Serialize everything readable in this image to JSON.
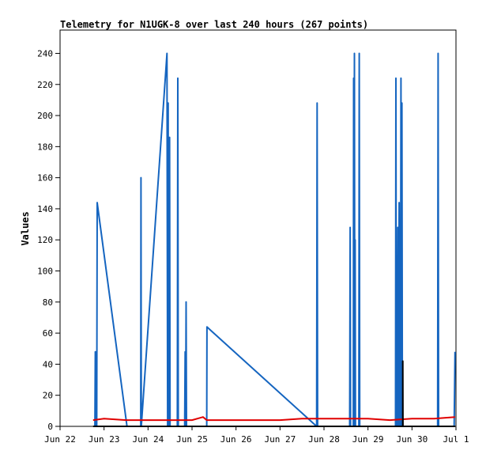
{
  "chart_data": {
    "type": "line",
    "title": "Telemetry for N1UGK-8 over last 240 hours (267 points)",
    "xlabel": "",
    "ylabel": "Values",
    "x_tick_labels": [
      "Jun 22",
      "Jun 23",
      "Jun 24",
      "Jun 25",
      "Jun 26",
      "Jun 27",
      "Jun 28",
      "Jun 29",
      "Jun 30",
      "Jul 1"
    ],
    "xlim": [
      "2023-06-22 00:00",
      "2023-07-01 00:00"
    ],
    "ylim": [
      0,
      255
    ],
    "y_ticks": [
      0,
      20,
      40,
      60,
      80,
      100,
      120,
      140,
      160,
      180,
      200,
      220,
      240
    ],
    "grid": false,
    "legend": "none",
    "colors": {
      "blue": "#1565c0",
      "red": "#e00000",
      "black": "#000000"
    },
    "series": [
      {
        "color": "#1565c0",
        "points": [
          [
            "2023-06-22 19:00",
            0
          ],
          [
            "2023-06-22 19:15",
            48
          ],
          [
            "2023-06-22 19:30",
            0
          ],
          [
            "2023-06-22 19:45",
            48
          ],
          [
            "2023-06-22 20:00",
            0
          ],
          [
            "2023-06-22 20:15",
            144
          ],
          [
            "2023-06-22 20:30",
            142
          ],
          [
            "2023-06-23 12:30",
            0
          ],
          [
            "2023-06-23 20:00",
            0
          ],
          [
            "2023-06-23 20:10",
            160
          ],
          [
            "2023-06-23 20:20",
            0
          ],
          [
            "2023-06-24 10:00",
            234
          ],
          [
            "2023-06-24 10:20",
            240
          ],
          [
            "2023-06-24 10:40",
            0
          ],
          [
            "2023-06-24 11:00",
            208
          ],
          [
            "2023-06-24 11:10",
            0
          ],
          [
            "2023-06-24 11:20",
            104
          ],
          [
            "2023-06-24 11:30",
            0
          ],
          [
            "2023-06-24 11:45",
            186
          ],
          [
            "2023-06-24 12:00",
            0
          ],
          [
            "2023-06-24 16:00",
            0
          ],
          [
            "2023-06-24 16:15",
            224
          ],
          [
            "2023-06-24 16:30",
            0
          ],
          [
            "2023-06-24 20:00",
            0
          ],
          [
            "2023-06-24 20:15",
            48
          ],
          [
            "2023-06-24 20:30",
            0
          ],
          [
            "2023-06-24 20:45",
            80
          ],
          [
            "2023-06-24 21:00",
            0
          ],
          [
            "2023-06-25 08:00",
            0
          ],
          [
            "2023-06-25 08:10",
            64
          ],
          [
            "2023-06-25 10:00",
            62
          ],
          [
            "2023-06-27 20:00",
            0
          ],
          [
            "2023-06-27 20:15",
            208
          ],
          [
            "2023-06-27 20:30",
            0
          ],
          [
            "2023-06-28 14:00",
            0
          ],
          [
            "2023-06-28 14:15",
            128
          ],
          [
            "2023-06-28 14:30",
            0
          ],
          [
            "2023-06-28 16:00",
            0
          ],
          [
            "2023-06-28 16:10",
            224
          ],
          [
            "2023-06-28 16:20",
            0
          ],
          [
            "2023-06-28 16:35",
            240
          ],
          [
            "2023-06-28 16:50",
            0
          ],
          [
            "2023-06-28 17:00",
            120
          ],
          [
            "2023-06-28 17:10",
            0
          ],
          [
            "2023-06-28 19:00",
            0
          ],
          [
            "2023-06-28 19:15",
            240
          ],
          [
            "2023-06-28 19:30",
            0
          ],
          [
            "2023-06-29 15:00",
            0
          ],
          [
            "2023-06-29 15:15",
            224
          ],
          [
            "2023-06-29 15:30",
            0
          ],
          [
            "2023-06-29 15:45",
            106
          ],
          [
            "2023-06-29 16:00",
            0
          ],
          [
            "2023-06-29 16:15",
            128
          ],
          [
            "2023-06-29 16:30",
            0
          ],
          [
            "2023-06-29 17:00",
            144
          ],
          [
            "2023-06-29 17:15",
            0
          ],
          [
            "2023-06-29 17:30",
            80
          ],
          [
            "2023-06-29 17:45",
            0
          ],
          [
            "2023-06-29 18:00",
            224
          ],
          [
            "2023-06-29 18:15",
            0
          ],
          [
            "2023-06-29 18:30",
            208
          ],
          [
            "2023-06-29 18:45",
            0
          ],
          [
            "2023-06-30 14:00",
            0
          ],
          [
            "2023-06-30 14:15",
            240
          ],
          [
            "2023-06-30 14:30",
            0
          ],
          [
            "2023-06-30 23:00",
            0
          ],
          [
            "2023-06-30 23:30",
            48
          ]
        ]
      },
      {
        "color": "#e00000",
        "points": [
          [
            "2023-06-22 18:00",
            4
          ],
          [
            "2023-06-23 00:00",
            5
          ],
          [
            "2023-06-23 12:00",
            4
          ],
          [
            "2023-06-24 00:00",
            4
          ],
          [
            "2023-06-24 12:00",
            4
          ],
          [
            "2023-06-25 00:00",
            4
          ],
          [
            "2023-06-25 06:00",
            6
          ],
          [
            "2023-06-25 08:00",
            4
          ],
          [
            "2023-06-26 00:00",
            4
          ],
          [
            "2023-06-26 12:00",
            4
          ],
          [
            "2023-06-27 00:00",
            4
          ],
          [
            "2023-06-27 12:00",
            5
          ],
          [
            "2023-06-28 00:00",
            5
          ],
          [
            "2023-06-28 12:00",
            5
          ],
          [
            "2023-06-29 00:00",
            5
          ],
          [
            "2023-06-29 12:00",
            4
          ],
          [
            "2023-06-30 00:00",
            5
          ],
          [
            "2023-06-30 12:00",
            5
          ],
          [
            "2023-06-30 23:30",
            6
          ]
        ]
      },
      {
        "color": "#000000",
        "points": [
          [
            "2023-06-22 18:00",
            0
          ],
          [
            "2023-06-29 19:00",
            0
          ],
          [
            "2023-06-29 19:00",
            42
          ],
          [
            "2023-06-29 19:05",
            0
          ],
          [
            "2023-06-30 23:30",
            0
          ]
        ]
      }
    ]
  }
}
